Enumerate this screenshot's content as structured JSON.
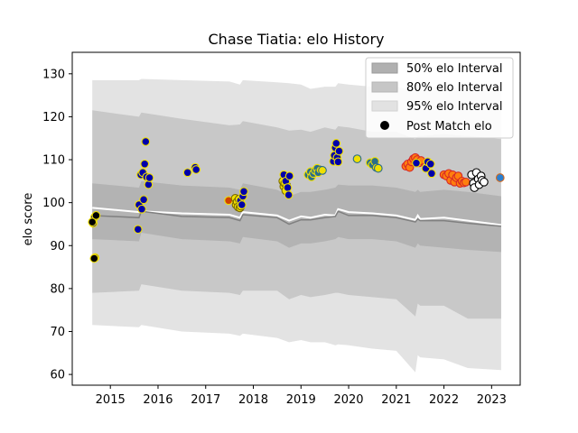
{
  "chart_data": {
    "type": "scatter",
    "title": "Chase Tiatia: elo History",
    "xlabel": "",
    "ylabel": "elo score",
    "xlim": [
      2014.2,
      2023.6
    ],
    "ylim": [
      57.5,
      135
    ],
    "x_ticks": [
      2015,
      2016,
      2017,
      2018,
      2019,
      2020,
      2021,
      2022,
      2023
    ],
    "y_ticks": [
      60,
      70,
      80,
      90,
      100,
      110,
      120,
      130
    ],
    "grid": false,
    "legend_position": "top-right",
    "legend": [
      {
        "label": "50% elo Interval",
        "kind": "patch",
        "color": "#b0b0b0"
      },
      {
        "label": "80% elo Interval",
        "kind": "patch",
        "color": "#c6c6c6"
      },
      {
        "label": "95% elo Interval",
        "kind": "patch",
        "color": "#e2e2e2"
      },
      {
        "label": "Post Match elo",
        "kind": "marker",
        "color": "#000000"
      }
    ],
    "colors": {
      "band50": "#b3b3b3",
      "band80": "#c8c8c8",
      "band95": "#e3e3e3",
      "mean_line": "#ffffff",
      "median_line": "#808080"
    },
    "bands": {
      "x": [
        2014.62,
        2015.6,
        2015.65,
        2016.5,
        2017.5,
        2017.72,
        2017.78,
        2018.5,
        2018.75,
        2019.0,
        2019.2,
        2019.5,
        2019.72,
        2019.78,
        2020.0,
        2020.5,
        2021.0,
        2021.4,
        2021.45,
        2021.5,
        2022.0,
        2022.5,
        2023.2
      ],
      "hi95": [
        128.5,
        128.5,
        128.8,
        128.5,
        128.2,
        127.5,
        128.5,
        128.0,
        127.8,
        127.5,
        126.5,
        127.0,
        127.0,
        127.8,
        127.5,
        127.0,
        127.0,
        126.0,
        127.5,
        126.5,
        127.0,
        126.5,
        126.0
      ],
      "hi80": [
        121.5,
        120.0,
        121.0,
        119.5,
        118.0,
        118.2,
        119.0,
        117.5,
        116.8,
        117.0,
        116.5,
        117.5,
        117.0,
        117.8,
        117.5,
        116.5,
        116.5,
        114.8,
        115.5,
        115.5,
        116.0,
        115.5,
        114.8
      ],
      "hi50": [
        104.5,
        103.5,
        105.0,
        104.0,
        103.5,
        103.0,
        104.5,
        103.0,
        101.5,
        102.5,
        102.5,
        103.0,
        103.5,
        104.2,
        104.0,
        104.0,
        103.5,
        102.5,
        103.0,
        102.5,
        103.0,
        102.5,
        101.5
      ],
      "lo50": [
        91.5,
        91.0,
        93.0,
        91.5,
        91.0,
        90.5,
        92.0,
        91.0,
        89.5,
        90.5,
        90.5,
        91.0,
        91.5,
        92.0,
        91.5,
        91.5,
        91.0,
        89.5,
        90.5,
        90.0,
        89.5,
        89.0,
        88.5
      ],
      "lo80": [
        79.0,
        79.5,
        81.0,
        79.5,
        79.0,
        78.5,
        79.5,
        79.5,
        77.5,
        78.5,
        78.0,
        78.5,
        79.0,
        79.0,
        78.5,
        78.0,
        77.5,
        73.5,
        76.5,
        76.0,
        76.0,
        73.0,
        73.0
      ],
      "lo95": [
        71.5,
        71.0,
        71.5,
        70.0,
        69.5,
        69.0,
        69.5,
        68.5,
        67.5,
        68.0,
        67.5,
        67.5,
        66.8,
        67.0,
        66.8,
        66.0,
        65.5,
        60.5,
        64.5,
        64.0,
        63.5,
        61.5,
        61.0
      ],
      "mean": [
        98.8,
        97.8,
        98.0,
        97.5,
        97.2,
        96.5,
        97.8,
        97.0,
        95.8,
        96.8,
        96.5,
        97.2,
        97.0,
        98.5,
        97.8,
        97.5,
        97.0,
        96.0,
        97.0,
        96.2,
        96.5,
        95.8,
        94.8
      ],
      "median": [
        97.0,
        96.5,
        98.0,
        96.8,
        96.5,
        95.8,
        97.2,
        96.5,
        95.0,
        96.0,
        96.0,
        96.5,
        96.8,
        98.0,
        97.0,
        97.0,
        96.5,
        95.5,
        96.2,
        95.8,
        95.8,
        95.2,
        94.5
      ]
    },
    "series": [
      {
        "face": "#0000aa",
        "edge": "#f0e000",
        "points": [
          [
            2014.64,
            95.2
          ],
          [
            2014.67,
            96.6
          ],
          [
            2014.68,
            87.2
          ]
        ]
      },
      {
        "face": "#000000",
        "edge": "#f0e000",
        "points": [
          [
            2014.62,
            95.5
          ],
          [
            2014.7,
            97.0
          ],
          [
            2014.66,
            87.0
          ]
        ]
      },
      {
        "face": "#0000aa",
        "edge": "#f0e000",
        "points": [
          [
            2015.58,
            93.8
          ],
          [
            2015.6,
            99.5
          ],
          [
            2015.64,
            106.5
          ],
          [
            2015.66,
            98.5
          ],
          [
            2015.68,
            107.0
          ],
          [
            2015.7,
            100.7
          ],
          [
            2015.72,
            109.0
          ],
          [
            2015.74,
            114.2
          ],
          [
            2015.76,
            106.0
          ],
          [
            2015.8,
            104.2
          ],
          [
            2015.82,
            105.8
          ]
        ]
      },
      {
        "face": "#0000aa",
        "edge": "#f0e000",
        "points": [
          [
            2016.62,
            107.0
          ],
          [
            2016.78,
            108.2
          ],
          [
            2016.8,
            107.7
          ]
        ]
      },
      {
        "face": "#d04000",
        "edge": "#f0e000",
        "points": [
          [
            2017.48,
            100.5
          ]
        ]
      },
      {
        "face": "#f0e000",
        "edge": "#7a6a00",
        "points": [
          [
            2017.62,
            101.0
          ],
          [
            2017.64,
            99.5
          ],
          [
            2017.66,
            100.2
          ],
          [
            2017.68,
            99.0
          ],
          [
            2017.7,
            100.8
          ],
          [
            2017.72,
            98.8
          ],
          [
            2017.74,
            99.2
          ]
        ]
      },
      {
        "face": "#0000aa",
        "edge": "#f0e000",
        "points": [
          [
            2017.73,
            100.5
          ],
          [
            2017.76,
            99.5
          ],
          [
            2017.78,
            101.5
          ],
          [
            2017.8,
            102.6
          ]
        ]
      },
      {
        "face": "#f0e000",
        "edge": "#7a6a00",
        "points": [
          [
            2018.62,
            105.0
          ],
          [
            2018.64,
            103.8
          ],
          [
            2018.66,
            104.5
          ],
          [
            2018.68,
            102.8
          ],
          [
            2018.7,
            104.0
          ]
        ]
      },
      {
        "face": "#0000aa",
        "edge": "#f0e000",
        "points": [
          [
            2018.64,
            106.5
          ],
          [
            2018.68,
            105.0
          ],
          [
            2018.72,
            103.5
          ],
          [
            2018.74,
            101.8
          ],
          [
            2018.76,
            106.2
          ]
        ]
      },
      {
        "face": "#2a6d8a",
        "edge": "#f0e000",
        "points": [
          [
            2019.15,
            106.5
          ],
          [
            2019.2,
            107.2
          ],
          [
            2019.22,
            106.0
          ],
          [
            2019.26,
            106.8
          ],
          [
            2019.3,
            107.5
          ],
          [
            2019.34,
            108.0
          ],
          [
            2019.36,
            107.0
          ]
        ]
      },
      {
        "face": "#f0e000",
        "edge": "#2a6d8a",
        "points": [
          [
            2019.4,
            107.6
          ],
          [
            2019.45,
            107.5
          ]
        ]
      },
      {
        "face": "#0000aa",
        "edge": "#f0e000",
        "points": [
          [
            2019.68,
            109.6
          ],
          [
            2019.7,
            111.0
          ],
          [
            2019.72,
            112.8
          ],
          [
            2019.74,
            113.8
          ],
          [
            2019.76,
            110.5
          ],
          [
            2019.78,
            109.5
          ],
          [
            2019.8,
            112.0
          ]
        ]
      },
      {
        "face": "#f0e000",
        "edge": "#2a6d8a",
        "points": [
          [
            2020.18,
            110.2
          ]
        ]
      },
      {
        "face": "#2a6d8a",
        "edge": "#f0e000",
        "points": [
          [
            2020.45,
            109.3
          ],
          [
            2020.5,
            108.8
          ],
          [
            2020.55,
            109.6
          ]
        ]
      },
      {
        "face": "#f0e000",
        "edge": "#2a6d8a",
        "points": [
          [
            2020.58,
            108.2
          ],
          [
            2020.62,
            108.0
          ]
        ]
      },
      {
        "face": "#ff7f0e",
        "edge": "#d62728",
        "points": [
          [
            2021.2,
            108.5
          ],
          [
            2021.24,
            109.0
          ],
          [
            2021.28,
            108.2
          ],
          [
            2021.32,
            109.5
          ],
          [
            2021.36,
            110.2
          ],
          [
            2021.4,
            110.5
          ],
          [
            2021.44,
            110.0
          ],
          [
            2021.48,
            109.3
          ],
          [
            2021.52,
            109.8
          ]
        ]
      },
      {
        "face": "#0000aa",
        "edge": "#f0e000",
        "points": [
          [
            2021.42,
            109.2
          ],
          [
            2021.62,
            108.0
          ],
          [
            2021.66,
            109.5
          ],
          [
            2021.72,
            109.0
          ],
          [
            2021.74,
            106.8
          ]
        ]
      },
      {
        "face": "#ff7f0e",
        "edge": "#d62728",
        "points": [
          [
            2022.0,
            106.5
          ],
          [
            2022.05,
            106.2
          ],
          [
            2022.1,
            106.8
          ],
          [
            2022.14,
            105.2
          ],
          [
            2022.18,
            106.5
          ],
          [
            2022.22,
            104.8
          ],
          [
            2022.26,
            105.8
          ],
          [
            2022.3,
            106.2
          ],
          [
            2022.34,
            104.5
          ],
          [
            2022.38,
            105.0
          ],
          [
            2022.42,
            104.6
          ],
          [
            2022.46,
            104.8
          ]
        ]
      },
      {
        "face": "#ffffff",
        "edge": "#000000",
        "points": [
          [
            2022.58,
            106.5
          ],
          [
            2022.62,
            104.5
          ],
          [
            2022.64,
            103.5
          ],
          [
            2022.68,
            107.0
          ],
          [
            2022.72,
            105.5
          ],
          [
            2022.74,
            104.2
          ],
          [
            2022.78,
            106.2
          ],
          [
            2022.8,
            105.2
          ],
          [
            2022.84,
            104.8
          ]
        ]
      },
      {
        "face": "#2a7fd0",
        "edge": "#d2691e",
        "points": [
          [
            2023.18,
            105.8
          ]
        ]
      }
    ]
  }
}
